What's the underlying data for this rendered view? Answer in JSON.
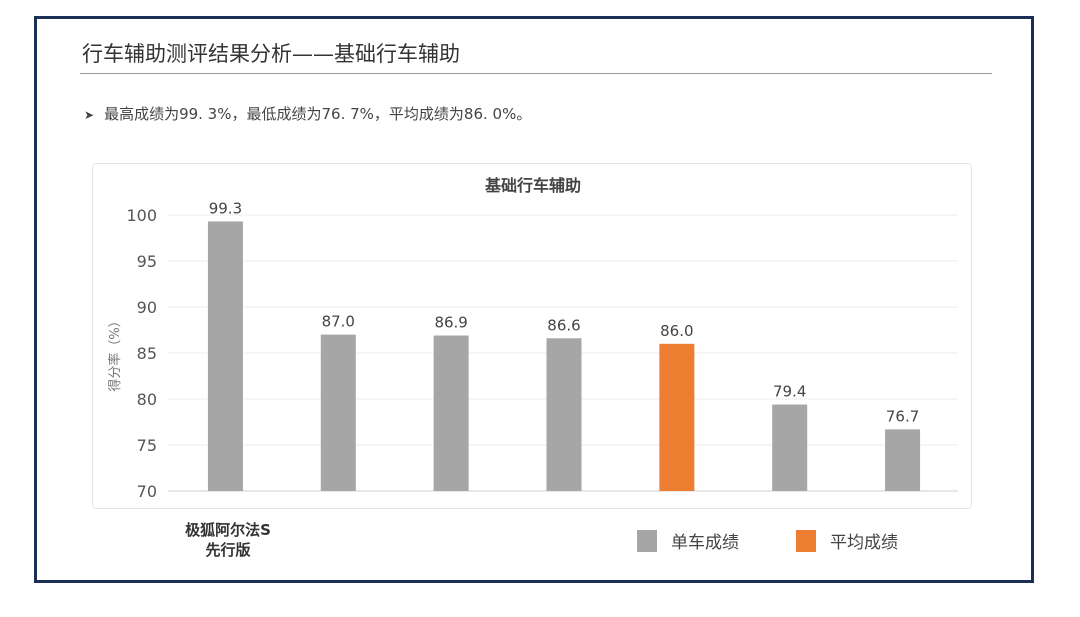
{
  "slide": {
    "title": "行车辅助测评结果分析——基础行车辅助",
    "bullet_icon": "arrow-bullet-icon",
    "bullet_text": "最高成绩为99. 3%，最低成绩为76. 7%，平均成绩为86. 0%。",
    "frame_color": "#1b2f55"
  },
  "chart_data": {
    "type": "bar",
    "title": "基础行车辅助",
    "ylabel": "得分率（%）",
    "xlabel": "",
    "ylim": [
      70,
      100
    ],
    "yticks": [
      70,
      75,
      80,
      85,
      90,
      95,
      100
    ],
    "grid": true,
    "legend_placement": "bottom-right",
    "categories": [
      "极狐阿尔法S\n先行版",
      "",
      "",
      "",
      "",
      "",
      ""
    ],
    "values": [
      99.3,
      87.0,
      86.9,
      86.6,
      86.0,
      79.4,
      76.7
    ],
    "data_labels": [
      "99.3",
      "87.0",
      "86.9",
      "86.6",
      "86.0",
      "79.4",
      "76.7"
    ],
    "bar_series": [
      "单车成绩",
      "单车成绩",
      "单车成绩",
      "单车成绩",
      "平均成绩",
      "单车成绩",
      "单车成绩"
    ],
    "legend": [
      {
        "name": "单车成绩",
        "color": "#a6a6a6"
      },
      {
        "name": "平均成绩",
        "color": "#ed7d31"
      }
    ]
  }
}
